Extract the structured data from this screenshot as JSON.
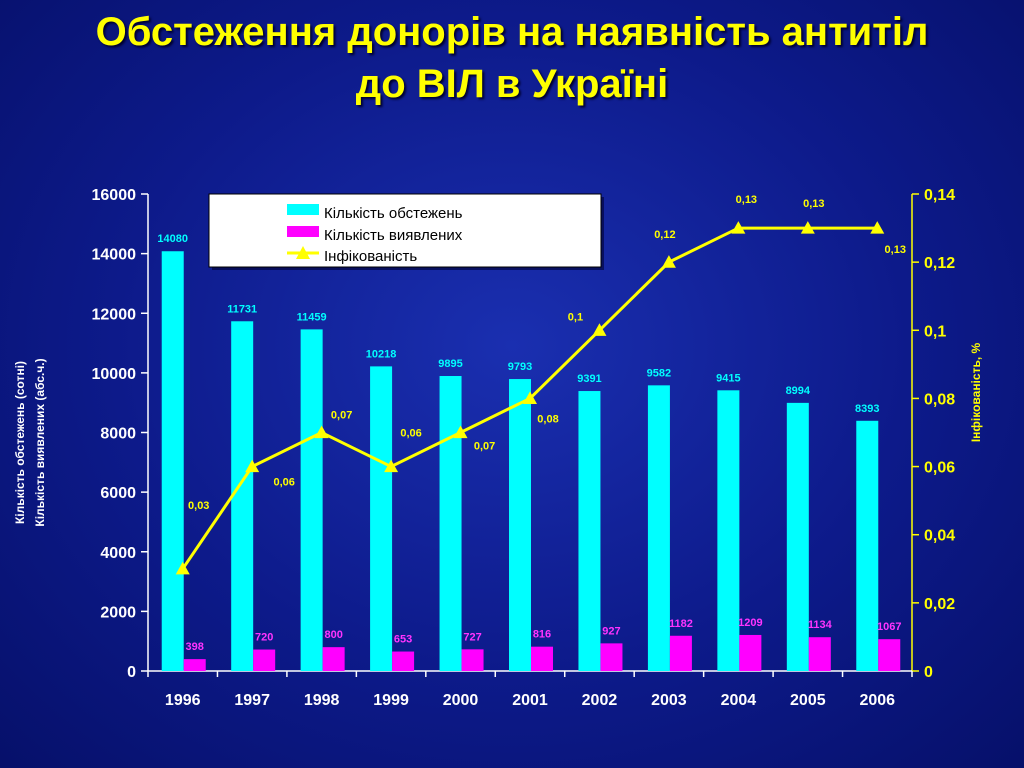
{
  "slide": {
    "title_line1": "Обстеження донорів на наявність антитіл",
    "title_line2": "до ВІЛ в Україні"
  },
  "colors": {
    "bar_a": "#00ffff",
    "bar_b": "#ff00ff",
    "line": "#ffff00",
    "axis_left": "#ffffff",
    "axis_right": "#ffff00"
  },
  "chart_data": {
    "type": "bar",
    "categories": [
      "1996",
      "1997",
      "1998",
      "1999",
      "2000",
      "2001",
      "2002",
      "2003",
      "2004",
      "2005",
      "2006"
    ],
    "series": [
      {
        "name": "Кількість обстежень",
        "kind": "bar",
        "axis": "left",
        "values": [
          14080,
          11731,
          11459,
          10218,
          9895,
          9793,
          9391,
          9582,
          9415,
          8994,
          8393
        ]
      },
      {
        "name": "Кількість виявлених",
        "kind": "bar",
        "axis": "left",
        "values": [
          398,
          720,
          800,
          653,
          727,
          816,
          927,
          1182,
          1209,
          1134,
          1067
        ]
      },
      {
        "name": "Інфікованість",
        "kind": "line",
        "axis": "right",
        "values": [
          0.03,
          0.06,
          0.07,
          0.06,
          0.07,
          0.08,
          0.1,
          0.12,
          0.13,
          0.13,
          0.13
        ],
        "labels": [
          "0,03",
          "0,06",
          "0,07",
          "0,06",
          "0,07",
          "0,08",
          "0,1",
          "0,12",
          "0,13",
          "0,13",
          "0,13"
        ]
      }
    ],
    "ylabel_left_line1": "Кількість обстежень (сотні)",
    "ylabel_left_line2": "Кількість виявлених (абс.ч.)",
    "ylabel_right": "Інфікованість, %",
    "ylim_left": [
      0,
      16000
    ],
    "yticks_left": [
      "0",
      "2000",
      "4000",
      "6000",
      "8000",
      "10000",
      "12000",
      "14000",
      "16000"
    ],
    "ylim_right": [
      0,
      0.14
    ],
    "yticks_right": [
      "0",
      "0,02",
      "0,04",
      "0,06",
      "0,08",
      "0,1",
      "0,12",
      "0,14"
    ],
    "legend_position": "top-center",
    "grid": false
  }
}
